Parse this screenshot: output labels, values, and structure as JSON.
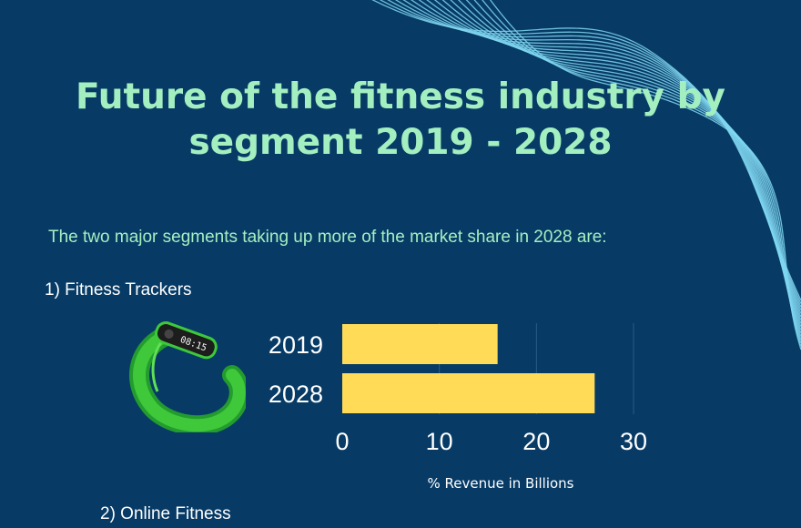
{
  "title": "Future of the fitness industry by segment 2019 - 2028",
  "intro": "The two major segments taking up more of the market share in 2028 are:",
  "segments": [
    {
      "label": "1) Fitness Trackers",
      "icon": "fitness-tracker-icon"
    },
    {
      "label": "2) Online Fitness"
    }
  ],
  "colors": {
    "background": "#073b66",
    "title": "#a3efc0",
    "bar": "#ffdb58",
    "waves": "#7fd6f0"
  },
  "tracker_screen_text": "08:15",
  "chart_data": {
    "type": "bar",
    "orientation": "horizontal",
    "categories": [
      "2019",
      "2028"
    ],
    "values": [
      16,
      26
    ],
    "xlabel": "% Revenue in Billions",
    "ylabel": "",
    "xlim": [
      0,
      30
    ],
    "xticks": [
      "0",
      "10",
      "20",
      "30"
    ],
    "grid": true
  }
}
